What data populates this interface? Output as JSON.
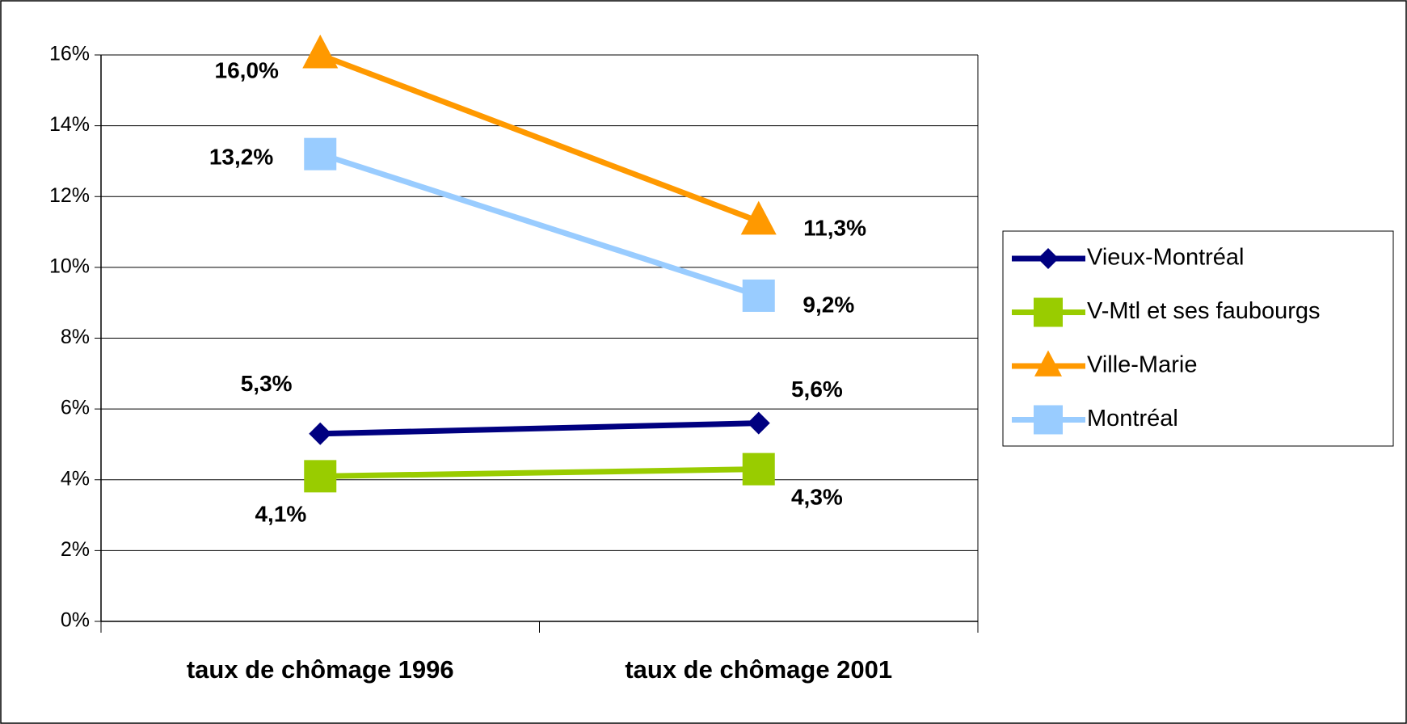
{
  "chart_data": {
    "type": "line",
    "categories": [
      "taux de chômage 1996",
      "taux de chômage 2001"
    ],
    "series": [
      {
        "name": "Vieux-Montréal",
        "color": "#000080",
        "marker": "diamond",
        "values": [
          5.3,
          5.6
        ],
        "value_labels": [
          "5,3%",
          "5,6%"
        ]
      },
      {
        "name": "V-Mtl et ses faubourgs",
        "color": "#99cc00",
        "marker": "square",
        "values": [
          4.1,
          4.3
        ],
        "value_labels": [
          "4,1%",
          "4,3%"
        ]
      },
      {
        "name": "Ville-Marie",
        "color": "#ff9900",
        "marker": "triangle",
        "values": [
          16.0,
          11.3
        ],
        "value_labels": [
          "16,0%",
          "11,3%"
        ]
      },
      {
        "name": "Montréal",
        "color": "#99ccff",
        "marker": "square",
        "values": [
          13.2,
          9.2
        ],
        "value_labels": [
          "13,2%",
          "9,2%"
        ]
      }
    ],
    "ylim": [
      0,
      16
    ],
    "yticks": [
      {
        "value": 0,
        "label": "0%"
      },
      {
        "value": 2,
        "label": "2%"
      },
      {
        "value": 4,
        "label": "4%"
      },
      {
        "value": 6,
        "label": "6%"
      },
      {
        "value": 8,
        "label": "8%"
      },
      {
        "value": 10,
        "label": "10%"
      },
      {
        "value": 12,
        "label": "12%"
      },
      {
        "value": 14,
        "label": "14%"
      },
      {
        "value": 16,
        "label": "16%"
      }
    ],
    "grid": true,
    "legend": "right"
  }
}
